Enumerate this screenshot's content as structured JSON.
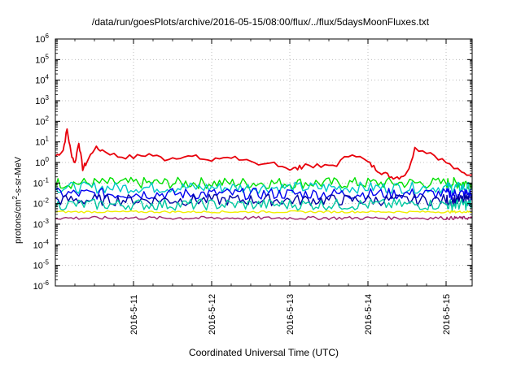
{
  "chart_data": {
    "type": "line",
    "title": "/data/run/goesPlots/archive/2016-05-15/08:00/flux/../flux/5daysMoonFluxes.txt",
    "xlabel": "Coordinated Universal Time (UTC)",
    "ylabel_parts": [
      "protons/cm",
      "2",
      "-s-sr-MeV"
    ],
    "yscale": "log",
    "ylim": [
      1e-06,
      1000000.0
    ],
    "y_tick_exponents": [
      -6,
      -5,
      -4,
      -3,
      -2,
      -1,
      0,
      1,
      2,
      3,
      4,
      5,
      6
    ],
    "xlim": [
      "2016-05-10T00:00",
      "2016-05-15T08:00"
    ],
    "x_ticks": [
      "2016-5-11",
      "2016-5-12",
      "2016-5-13",
      "2016-5-14",
      "2016-5-15"
    ],
    "grid": true,
    "series": [
      {
        "color": "#e8000b",
        "x_days": [
          0.0,
          0.1,
          0.15,
          0.2,
          0.25,
          0.3,
          0.35,
          0.4,
          0.5,
          0.6,
          0.8,
          1.0,
          1.2,
          1.4,
          1.6,
          1.8,
          2.0,
          2.2,
          2.4,
          2.6,
          2.8,
          3.0,
          3.1,
          3.2,
          3.4,
          3.6,
          3.8,
          4.0,
          4.1,
          4.2,
          4.3,
          4.4,
          4.5,
          4.6,
          4.8,
          5.0,
          5.2,
          5.33
        ],
        "values": [
          2.0,
          4.0,
          40.0,
          3.0,
          0.9,
          10.0,
          0.5,
          1.0,
          5.0,
          4.0,
          2.0,
          1.8,
          2.5,
          1.5,
          2.0,
          1.8,
          1.2,
          2.0,
          1.5,
          0.6,
          1.0,
          0.5,
          0.5,
          0.8,
          0.6,
          0.8,
          3.0,
          1.0,
          0.5,
          0.3,
          0.2,
          0.2,
          0.3,
          5.0,
          3.0,
          1.0,
          0.3,
          0.25
        ]
      },
      {
        "color": "#00e000",
        "x_days": [
          0,
          1,
          2,
          3,
          4,
          5,
          5.33
        ],
        "values": [
          0.1,
          0.1,
          0.1,
          0.1,
          0.1,
          0.1,
          0.1
        ]
      },
      {
        "color": "#00c8c8",
        "x_days": [
          0,
          1,
          2,
          3,
          4,
          5,
          5.33
        ],
        "values": [
          0.06,
          0.06,
          0.06,
          0.06,
          0.06,
          0.06,
          0.06
        ]
      },
      {
        "color": "#0000f0",
        "x_days": [
          0,
          1,
          2,
          3,
          4,
          5,
          5.33
        ],
        "values": [
          0.03,
          0.03,
          0.03,
          0.03,
          0.03,
          0.03,
          0.03
        ]
      },
      {
        "color": "#0000a0",
        "x_days": [
          0,
          1,
          2,
          3,
          4,
          5,
          5.33
        ],
        "values": [
          0.015,
          0.015,
          0.015,
          0.015,
          0.015,
          0.015,
          0.015
        ]
      },
      {
        "color": "#00c8a0",
        "x_days": [
          0,
          1,
          2,
          3,
          4,
          5,
          5.33
        ],
        "values": [
          0.009,
          0.009,
          0.009,
          0.009,
          0.009,
          0.009,
          0.009
        ]
      },
      {
        "color": "#f0f000",
        "x_days": [
          0,
          1,
          2,
          3,
          4,
          5,
          5.33
        ],
        "values": [
          0.004,
          0.004,
          0.004,
          0.004,
          0.004,
          0.004,
          0.004
        ]
      },
      {
        "color": "#a0206a",
        "x_days": [
          0,
          1,
          2,
          3,
          4,
          5,
          5.33
        ],
        "values": [
          0.002,
          0.002,
          0.002,
          0.002,
          0.002,
          0.002,
          0.002
        ]
      }
    ]
  }
}
